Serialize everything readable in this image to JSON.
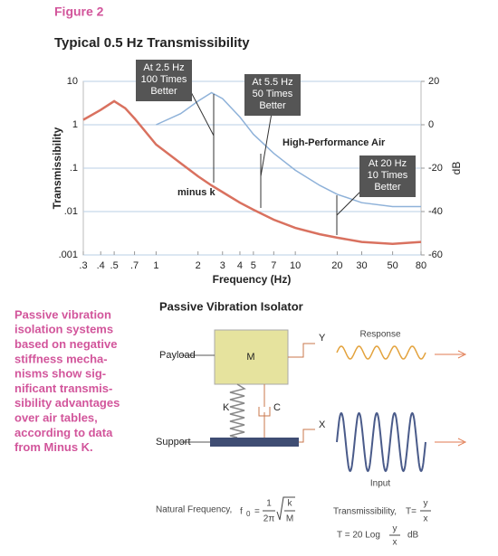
{
  "figure_label": "Figure 2",
  "chart_data": {
    "type": "line",
    "title": "Typical 0.5 Hz Transmissibility",
    "x_label": "Frequency (Hz)",
    "y_label": "Transmissibility",
    "y2_label": "dB",
    "x": [
      0.3,
      0.4,
      0.5,
      0.6,
      0.7,
      1,
      1.5,
      2,
      2.5,
      3,
      4,
      5,
      7,
      10,
      15,
      20,
      30,
      50,
      80
    ],
    "series": [
      {
        "name": "minus k",
        "color": "#d9715f",
        "values": [
          1.3,
          2.2,
          3.5,
          2.4,
          1.4,
          0.35,
          0.13,
          0.065,
          0.04,
          0.028,
          0.016,
          0.011,
          0.0065,
          0.0042,
          0.003,
          0.0025,
          0.002,
          0.0018,
          0.002
        ]
      },
      {
        "name": "High-Performance Air",
        "color": "#8fb2d9",
        "values": [
          null,
          null,
          null,
          null,
          null,
          1.0,
          1.8,
          3.5,
          5.5,
          4,
          1.5,
          0.6,
          0.22,
          0.09,
          0.04,
          0.025,
          0.016,
          0.013,
          0.013
        ]
      }
    ],
    "xlog": true,
    "ylog": true,
    "xlim": [
      0.3,
      80
    ],
    "xticks": [
      {
        "value": 0.3,
        "label": ".3"
      },
      {
        "value": 0.4,
        "label": ".4"
      },
      {
        "value": 0.5,
        "label": ".5"
      },
      {
        "value": 0.7,
        "label": ".7"
      },
      1,
      2,
      3,
      4,
      5,
      7,
      10,
      20,
      30,
      50,
      80
    ],
    "ylim": [
      0.001,
      10
    ],
    "yticks": [
      10,
      1,
      {
        "value": 0.1,
        "label": ".1"
      },
      {
        "value": 0.01,
        "label": ".01"
      },
      {
        "value": 0.001,
        "label": ".001"
      }
    ],
    "y2lim": [
      -60,
      20
    ],
    "y2ticks": [
      20,
      0,
      -20,
      -40,
      -60
    ],
    "grid": true,
    "annotations": [
      {
        "lines": [
          "At 2.5 Hz",
          "100 Times",
          "Better"
        ]
      },
      {
        "lines": [
          "At 5.5 Hz",
          "50 Times",
          "Better"
        ]
      },
      {
        "lines": [
          "At 20 Hz",
          "10 Times",
          "Better"
        ]
      }
    ]
  },
  "caption": [
    "Passive vibration",
    "isolation systems",
    "based on negative",
    "stiffness mecha-",
    "nisms show sig-",
    "nificant transmis-",
    "sibility advantages",
    "over air tables,",
    "according to data",
    "from Minus K."
  ],
  "diagram": {
    "title": "Passive Vibration Isolator",
    "payload": "Payload",
    "mass": "M",
    "y": "Y",
    "x": "X",
    "spring": "K",
    "damper": "C",
    "support": "Support",
    "response": "Response",
    "input": "Input",
    "natural_frequency": {
      "label": "Natural Frequency,",
      "symbol": "f",
      "sub": "0",
      "eq": "=",
      "num": "1",
      "den": "2π",
      "rad_num": "k",
      "rad_den": "M"
    },
    "transmissibility": {
      "label": "Transmissibility,",
      "symbol": "T=",
      "num": "y",
      "den": "x"
    },
    "db_formula": {
      "lead": "T = 20 Log",
      "num": "y",
      "den": "x",
      "unit": "dB"
    }
  }
}
